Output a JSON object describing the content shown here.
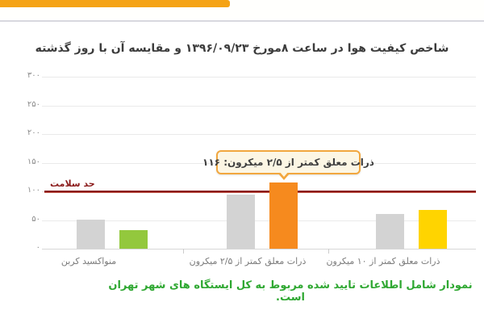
{
  "header": {
    "stripe_color": "#f5a315"
  },
  "chart_data": {
    "type": "bar",
    "title": "شاخص کیفیت هوا در ساعت ۸مورخ ۱۳۹۶/۰۹/۲۳ و مقایسه آن با روز گذشته",
    "categories": [
      "منواکسید کربن",
      "ذرات معلق کمتر از ۲/۵ میکرون",
      "ذرات معلق کمتر از ۱۰ میکرون"
    ],
    "series": [
      {
        "role": "comparison-day",
        "color": "#d3d3d3",
        "values": [
          51,
          95,
          60
        ]
      },
      {
        "role": "current-day",
        "colors": [
          "#93c83d",
          "#f68a1e",
          "#ffd400"
        ],
        "values": [
          32,
          116,
          67
        ]
      }
    ],
    "ylim": [
      0,
      300
    ],
    "y_ticks": [
      {
        "value": 0,
        "label": "۰"
      },
      {
        "value": 50,
        "label": "۵۰"
      },
      {
        "value": 100,
        "label": "۱۰۰"
      },
      {
        "value": 150,
        "label": "۱۵۰"
      },
      {
        "value": 200,
        "label": "۲۰۰"
      },
      {
        "value": 250,
        "label": "۲۵۰"
      },
      {
        "value": 300,
        "label": "۳۰۰"
      }
    ],
    "grid": true,
    "legend": "none",
    "health_line": {
      "value": 100,
      "label": "حد سلامت",
      "color": "#8b1b1b"
    },
    "tooltip": {
      "text": "ذرات معلق کمتر از ۲/۵ میکرون: ۱۱۶",
      "value": 116,
      "bg": "#fcf6e4",
      "border": "#f2a73f"
    }
  },
  "footnote": {
    "text": "نمودار شامل اطلاعات تایید شده مربوط به کل ایستگاه های شهر تهران است.",
    "color": "#2fa832"
  }
}
